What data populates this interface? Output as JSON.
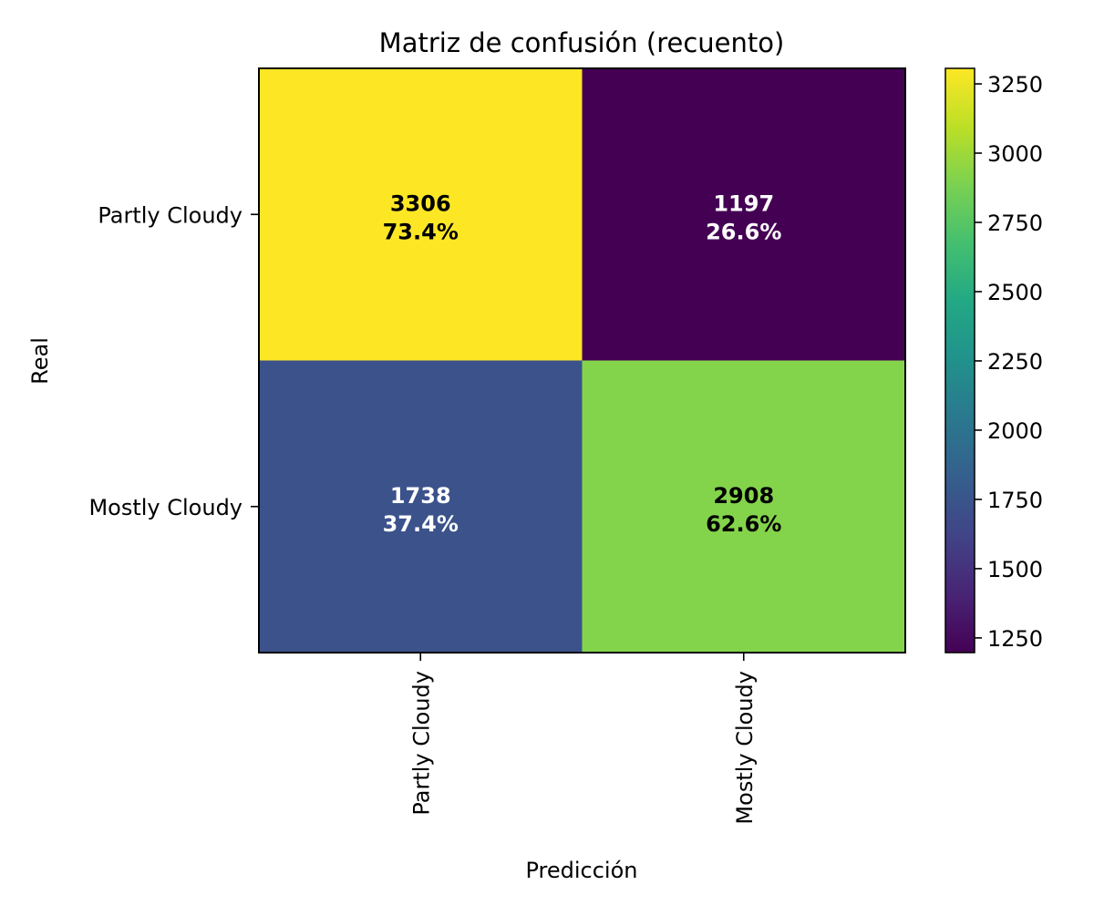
{
  "chart_data": {
    "type": "heatmap",
    "title": "Matriz de confusión (recuento)",
    "xlabel": "Predicción",
    "ylabel": "Real",
    "x_categories": [
      "Partly Cloudy",
      "Mostly Cloudy"
    ],
    "y_categories": [
      "Partly Cloudy",
      "Mostly Cloudy"
    ],
    "values": [
      [
        3306,
        1197
      ],
      [
        1738,
        2908
      ]
    ],
    "cell_labels": [
      [
        "3306\n73.4%",
        "1197\n26.6%"
      ],
      [
        "1738\n37.4%",
        "2908\n62.6%"
      ]
    ],
    "row_percentages": [
      [
        73.4,
        26.6
      ],
      [
        37.4,
        62.6
      ]
    ],
    "colormap": "viridis",
    "colors": {
      "cells": [
        [
          "#fde725",
          "#440154"
        ],
        [
          "#3b528b",
          "#84d44b"
        ]
      ],
      "text_dark": "#000000",
      "text_light": "#ffffff"
    },
    "colorbar": {
      "range": [
        1197,
        3306
      ],
      "ticks": [
        1250,
        1500,
        1750,
        2000,
        2250,
        2500,
        2750,
        3000,
        3250
      ],
      "tick_labels": [
        "1250",
        "1500",
        "1750",
        "2000",
        "2250",
        "2500",
        "2750",
        "3000",
        "3250"
      ]
    }
  }
}
